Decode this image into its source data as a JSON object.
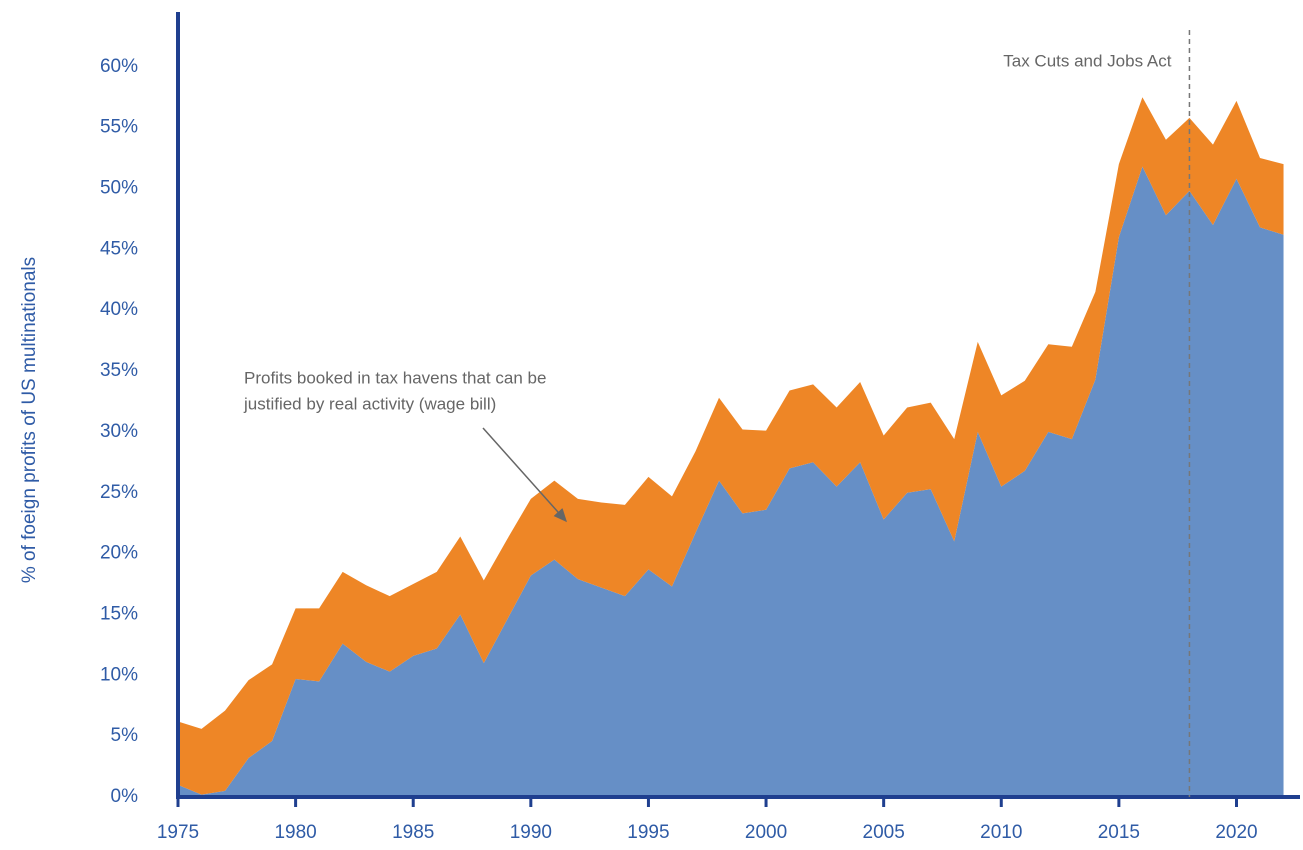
{
  "chart_data": {
    "type": "stacked_area",
    "y_label": "% of foeign profits of US multinationals",
    "x": [
      1975,
      1976,
      1977,
      1978,
      1979,
      1980,
      1981,
      1982,
      1983,
      1984,
      1985,
      1986,
      1987,
      1988,
      1989,
      1990,
      1991,
      1992,
      1993,
      1994,
      1995,
      1996,
      1997,
      1998,
      1999,
      2000,
      2001,
      2002,
      2003,
      2004,
      2005,
      2006,
      2007,
      2008,
      2009,
      2010,
      2011,
      2012,
      2013,
      2014,
      2015,
      2016,
      2017,
      2018,
      2019,
      2020,
      2021,
      2022
    ],
    "series": [
      {
        "color": "#668fc6",
        "values": [
          1,
          0.2,
          0.5,
          3.2,
          4.6,
          9.7,
          9.5,
          12.6,
          11.1,
          10.3,
          11.6,
          12.2,
          15,
          11,
          14.6,
          18.2,
          19.5,
          17.9,
          17.2,
          16.5,
          18.7,
          17.3,
          21.7,
          26,
          23.3,
          23.6,
          27,
          27.5,
          25.5,
          27.5,
          22.8,
          25,
          25.3,
          21,
          30,
          25.5,
          26.8,
          30,
          29.4,
          34.3,
          46,
          51.8,
          47.8,
          49.8,
          47,
          50.8,
          46.8,
          46.2
        ]
      },
      {
        "color": "#ee8626",
        "values": [
          5.2,
          5.4,
          6.6,
          6.4,
          6.3,
          5.8,
          6,
          5.9,
          6.3,
          6.2,
          5.9,
          6.3,
          6.4,
          6.8,
          6.6,
          6.3,
          6.5,
          6.6,
          7,
          7.5,
          7.6,
          7.4,
          6.7,
          6.8,
          6.9,
          6.5,
          6.4,
          6.4,
          6.5,
          6.6,
          6.9,
          7,
          7.1,
          8.4,
          7.4,
          7.5,
          7.4,
          7.2,
          7.6,
          7.2,
          6,
          5.7,
          6.2,
          6,
          6.6,
          6.4,
          5.7,
          5.8
        ]
      }
    ],
    "xlim": [
      1975,
      2022.7
    ],
    "xticks": [
      1975,
      1980,
      1985,
      1990,
      1995,
      2000,
      2005,
      2010,
      2015,
      2020
    ],
    "ylim": [
      0,
      64.5
    ],
    "yticks": [
      {
        "value": 0,
        "label": "0%"
      },
      {
        "value": 5,
        "label": "5%"
      },
      {
        "value": 10,
        "label": "10%"
      },
      {
        "value": 15,
        "label": "15%"
      },
      {
        "value": 20,
        "label": "20%"
      },
      {
        "value": 25,
        "label": "25%"
      },
      {
        "value": 30,
        "label": "30%"
      },
      {
        "value": 35,
        "label": "35%"
      },
      {
        "value": 40,
        "label": "40%"
      },
      {
        "value": 45,
        "label": "45%"
      },
      {
        "value": 50,
        "label": "50%"
      },
      {
        "value": 55,
        "label": "55%"
      },
      {
        "value": 60,
        "label": "60%"
      }
    ],
    "vline": {
      "x": 2018,
      "label": "Tax Cuts and Jobs Act"
    },
    "annotation": [
      "Profits booked in tax havens that can be",
      "justified by real activity (wage bill)"
    ]
  }
}
